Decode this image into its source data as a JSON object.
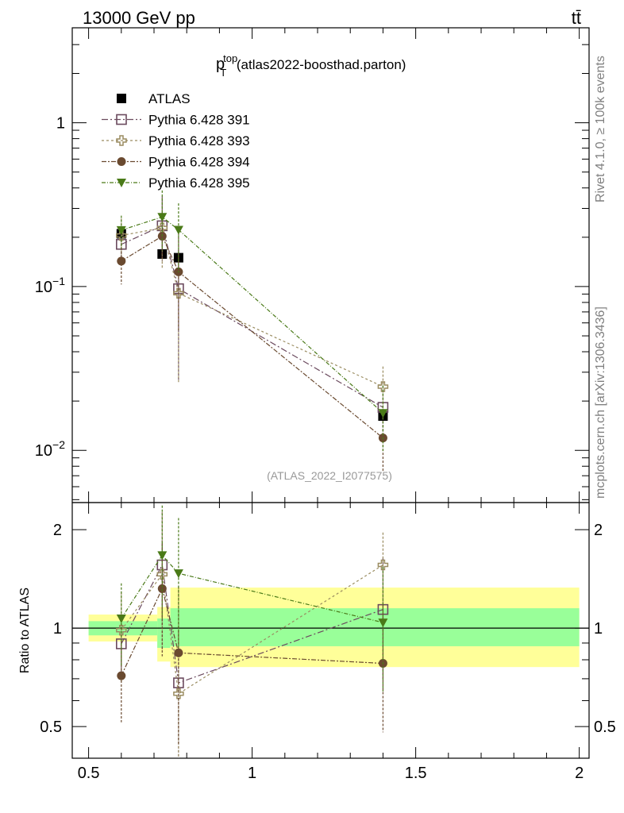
{
  "header": {
    "left": "13000 GeV pp",
    "right": "tt̄"
  },
  "side_text": {
    "rivet": "Rivet 4.1.0, ≥ 100k events",
    "mcplots": "mcplots.cern.ch [arXiv:1306.3436]"
  },
  "chart_data": [
    {
      "type": "scatter",
      "title_main": "p",
      "title_sup": "top",
      "title_sub": "T",
      "title_rest": " (atlas2022-boosthad.parton)",
      "watermark": "(ATLAS_2022_I2077575)",
      "yscale": "log",
      "xlim": [
        0.45,
        2.03
      ],
      "ylim": [
        0.0048,
        3.8
      ],
      "y_ticks": [
        {
          "value": 1,
          "base": "1",
          "exp": ""
        },
        {
          "value": 0.1,
          "base": "10",
          "exp": "−1"
        },
        {
          "value": 0.01,
          "base": "10",
          "exp": "−2"
        }
      ],
      "series": [
        {
          "name": "ATLAS",
          "marker": "square-filled",
          "color": "#000000",
          "dash": "",
          "x": [
            0.6,
            0.725,
            0.775,
            1.4
          ],
          "y": [
            0.21,
            0.158,
            0.15,
            0.0162
          ],
          "err_lo": [
            0.01,
            0.01,
            0.01,
            0.001
          ],
          "err_hi": [
            0.01,
            0.01,
            0.01,
            0.001
          ]
        },
        {
          "name": "Pythia 6.428 391",
          "marker": "square-open",
          "color": "#6b4a5e",
          "dash": "8,3,2,3",
          "x": [
            0.6,
            0.725,
            0.775,
            1.4
          ],
          "y": [
            0.181,
            0.235,
            0.097,
            0.0183
          ],
          "err_lo": [
            0.04,
            0.09,
            0.07,
            0.007
          ],
          "err_hi": [
            0.05,
            0.12,
            0.07,
            0.008
          ]
        },
        {
          "name": "Pythia 6.428 393",
          "marker": "plus-open",
          "color": "#9a8c60",
          "dash": "3,3",
          "x": [
            0.6,
            0.725,
            0.775,
            1.4
          ],
          "y": [
            0.205,
            0.228,
            0.091,
            0.0245
          ],
          "err_lo": [
            0.05,
            0.1,
            0.065,
            0.009
          ],
          "err_hi": [
            0.055,
            0.12,
            0.07,
            0.008
          ]
        },
        {
          "name": "Pythia 6.428 394",
          "marker": "circle-filled",
          "color": "#6a4a30",
          "dash": "6,2,2,2",
          "x": [
            0.6,
            0.725,
            0.775,
            1.4
          ],
          "y": [
            0.143,
            0.203,
            0.123,
            0.0119
          ],
          "err_lo": [
            0.04,
            0.06,
            0.07,
            0.0045
          ],
          "err_hi": [
            0.05,
            0.08,
            0.09,
            0.006
          ]
        },
        {
          "name": "Pythia 6.428 395",
          "marker": "triangle-down",
          "color": "#4a7a18",
          "dash": "5,2,1,2",
          "x": [
            0.6,
            0.725,
            0.775,
            1.4
          ],
          "y": [
            0.221,
            0.266,
            0.222,
            0.0169
          ],
          "err_lo": [
            0.05,
            0.1,
            0.1,
            0.007
          ],
          "err_hi": [
            0.05,
            0.12,
            0.1,
            0.008
          ]
        }
      ]
    },
    {
      "type": "scatter",
      "ylabel": "Ratio to ATLAS",
      "yscale": "log",
      "xlim": [
        0.45,
        2.03
      ],
      "ylim": [
        0.4,
        2.42
      ],
      "x_ticks": [
        0.5,
        1,
        1.5,
        2
      ],
      "x_tick_labels": [
        "0.5",
        "1",
        "1.5",
        "2"
      ],
      "y_ticks": [
        0.5,
        1,
        2
      ],
      "y_tick_labels": [
        "0.5",
        "1",
        "2"
      ],
      "reference_line": 1,
      "bands": [
        {
          "x0": 0.5,
          "x1": 0.71,
          "yellow": [
            0.91,
            1.1
          ],
          "green": [
            0.95,
            1.05
          ]
        },
        {
          "x0": 0.71,
          "x1": 0.75,
          "yellow": [
            0.79,
            1.16
          ],
          "green": [
            0.87,
            1.07
          ]
        },
        {
          "x0": 0.75,
          "x1": 2.0,
          "yellow": [
            0.76,
            1.33
          ],
          "green": [
            0.88,
            1.15
          ]
        }
      ],
      "band_colors": {
        "yellow": "#ffff99",
        "green": "#99ff99"
      },
      "series": [
        {
          "name": "Pythia 6.428 391",
          "marker": "square-open",
          "color": "#6b4a5e",
          "dash": "8,3,2,3",
          "x": [
            0.6,
            0.725,
            0.775,
            1.4
          ],
          "y": [
            0.895,
            1.56,
            0.68,
            1.14
          ],
          "err_lo": [
            0.2,
            0.55,
            0.35,
            0.45
          ],
          "err_hi": [
            0.2,
            0.7,
            0.3,
            0.5
          ]
        },
        {
          "name": "Pythia 6.428 393",
          "marker": "plus-open",
          "color": "#9a8c60",
          "dash": "3,3",
          "x": [
            0.6,
            0.725,
            0.775,
            1.4
          ],
          "y": [
            0.985,
            1.46,
            0.63,
            1.56
          ],
          "err_lo": [
            0.3,
            0.6,
            0.35,
            0.5
          ],
          "err_hi": [
            0.3,
            0.8,
            0.35,
            0.4
          ]
        },
        {
          "name": "Pythia 6.428 394",
          "marker": "circle-filled",
          "color": "#6a4a30",
          "dash": "6,2,2,2",
          "x": [
            0.6,
            0.725,
            0.775,
            1.4
          ],
          "y": [
            0.715,
            1.32,
            0.84,
            0.78
          ],
          "err_lo": [
            0.2,
            0.5,
            0.4,
            0.3
          ],
          "err_hi": [
            0.2,
            0.5,
            0.5,
            0.4
          ]
        },
        {
          "name": "Pythia 6.428 395",
          "marker": "triangle-down",
          "color": "#4a7a18",
          "dash": "5,2,1,2",
          "x": [
            0.6,
            0.725,
            0.775,
            1.4
          ],
          "y": [
            1.07,
            1.67,
            1.47,
            1.04
          ],
          "err_lo": [
            0.3,
            0.6,
            0.6,
            0.4
          ],
          "err_hi": [
            0.3,
            0.7,
            0.7,
            0.5
          ]
        }
      ]
    }
  ]
}
